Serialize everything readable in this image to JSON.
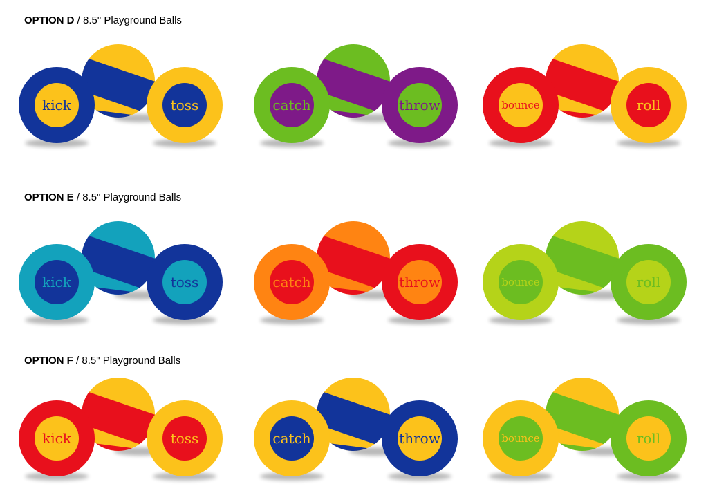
{
  "options": [
    {
      "label": "OPTION D",
      "subtitle": " / 8.5\" Playground Balls",
      "sets": [
        {
          "flat1": {
            "word": "kick",
            "outer": "#12349a",
            "inner": "#fcc21b",
            "text": "#12349a"
          },
          "striped": {
            "a": "#fcc21b",
            "b": "#12349a"
          },
          "flat2": {
            "word": "toss",
            "outer": "#fcc21b",
            "inner": "#12349a",
            "text": "#fcc21b"
          }
        },
        {
          "flat1": {
            "word": "catch",
            "outer": "#6cbd21",
            "inner": "#7e1a88",
            "text": "#6cbd21"
          },
          "striped": {
            "a": "#6cbd21",
            "b": "#7e1a88"
          },
          "flat2": {
            "word": "throw",
            "outer": "#7e1a88",
            "inner": "#6cbd21",
            "text": "#7e1a88"
          }
        },
        {
          "flat1": {
            "word": "bounce",
            "outer": "#e8101c",
            "inner": "#fcc21b",
            "text": "#e8101c"
          },
          "striped": {
            "a": "#fcc21b",
            "b": "#e8101c"
          },
          "flat2": {
            "word": "roll",
            "outer": "#fcc21b",
            "inner": "#e8101c",
            "text": "#fcc21b"
          }
        }
      ]
    },
    {
      "label": "OPTION E",
      "subtitle": " / 8.5\" Playground Balls",
      "sets": [
        {
          "flat1": {
            "word": "kick",
            "outer": "#13a2bc",
            "inner": "#12349a",
            "text": "#13a2bc"
          },
          "striped": {
            "a": "#13a2bc",
            "b": "#12349a"
          },
          "flat2": {
            "word": "toss",
            "outer": "#12349a",
            "inner": "#13a2bc",
            "text": "#12349a"
          }
        },
        {
          "flat1": {
            "word": "catch",
            "outer": "#ff8412",
            "inner": "#e8101c",
            "text": "#ff8412"
          },
          "striped": {
            "a": "#ff8412",
            "b": "#e8101c"
          },
          "flat2": {
            "word": "throw",
            "outer": "#e8101c",
            "inner": "#ff8412",
            "text": "#e8101c"
          }
        },
        {
          "flat1": {
            "word": "bounce",
            "outer": "#b5d319",
            "inner": "#6cbd21",
            "text": "#b5d319"
          },
          "striped": {
            "a": "#b5d319",
            "b": "#6cbd21"
          },
          "flat2": {
            "word": "roll",
            "outer": "#6cbd21",
            "inner": "#b5d319",
            "text": "#6cbd21"
          }
        }
      ]
    },
    {
      "label": "OPTION F",
      "subtitle": " / 8.5\" Playground Balls",
      "sets": [
        {
          "flat1": {
            "word": "kick",
            "outer": "#e8101c",
            "inner": "#fcc21b",
            "text": "#e8101c"
          },
          "striped": {
            "a": "#fcc21b",
            "b": "#e8101c"
          },
          "flat2": {
            "word": "toss",
            "outer": "#fcc21b",
            "inner": "#e8101c",
            "text": "#fcc21b"
          }
        },
        {
          "flat1": {
            "word": "catch",
            "outer": "#fcc21b",
            "inner": "#12349a",
            "text": "#fcc21b"
          },
          "striped": {
            "a": "#fcc21b",
            "b": "#12349a"
          },
          "flat2": {
            "word": "throw",
            "outer": "#12349a",
            "inner": "#fcc21b",
            "text": "#12349a"
          }
        },
        {
          "flat1": {
            "word": "bounce",
            "outer": "#fcc21b",
            "inner": "#6cbd21",
            "text": "#fcc21b"
          },
          "striped": {
            "a": "#fcc21b",
            "b": "#6cbd21"
          },
          "flat2": {
            "word": "roll",
            "outer": "#6cbd21",
            "inner": "#fcc21b",
            "text": "#6cbd21"
          }
        }
      ]
    }
  ]
}
